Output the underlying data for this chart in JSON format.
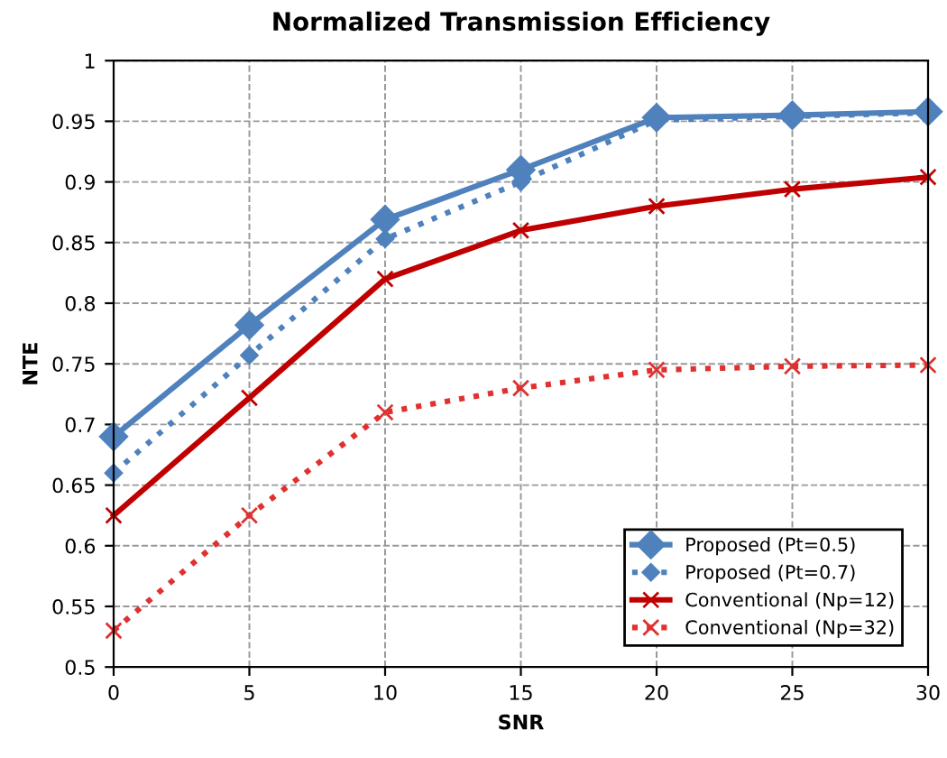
{
  "chart_data": {
    "type": "line",
    "title": "Normalized Transmission Efficiency",
    "xlabel": "SNR",
    "ylabel": "NTE",
    "x": [
      0,
      5,
      10,
      15,
      20,
      25,
      30
    ],
    "series": [
      {
        "name": "Proposed (Pt=0.5)",
        "color": "#4f81bd",
        "marker": "diamond",
        "line_style": "solid",
        "values": [
          0.69,
          0.782,
          0.869,
          0.91,
          0.953,
          0.955,
          0.958
        ]
      },
      {
        "name": "Proposed (Pt=0.7)",
        "color": "#4f81bd",
        "marker": "diamond",
        "line_style": "dotted",
        "values": [
          0.66,
          0.757,
          0.853,
          0.9,
          0.951,
          0.954,
          0.957
        ]
      },
      {
        "name": "Conventional (Np=12)",
        "color": "#c00000",
        "marker": "cross",
        "line_style": "solid",
        "values": [
          0.625,
          0.722,
          0.82,
          0.86,
          0.88,
          0.894,
          0.904
        ]
      },
      {
        "name": "Conventional (Np=32)",
        "color": "#e03030",
        "marker": "cross",
        "line_style": "dotted",
        "values": [
          0.53,
          0.625,
          0.71,
          0.73,
          0.745,
          0.748,
          0.749
        ]
      }
    ],
    "xlim": [
      0,
      30
    ],
    "xticks": [
      0,
      5,
      10,
      15,
      20,
      25,
      30
    ],
    "ylim": [
      0.5,
      1
    ],
    "yticks": [
      0.5,
      0.55,
      0.6,
      0.65,
      0.7,
      0.75,
      0.8,
      0.85,
      0.9,
      0.95,
      1
    ],
    "grid": true,
    "legend": "lower right"
  }
}
